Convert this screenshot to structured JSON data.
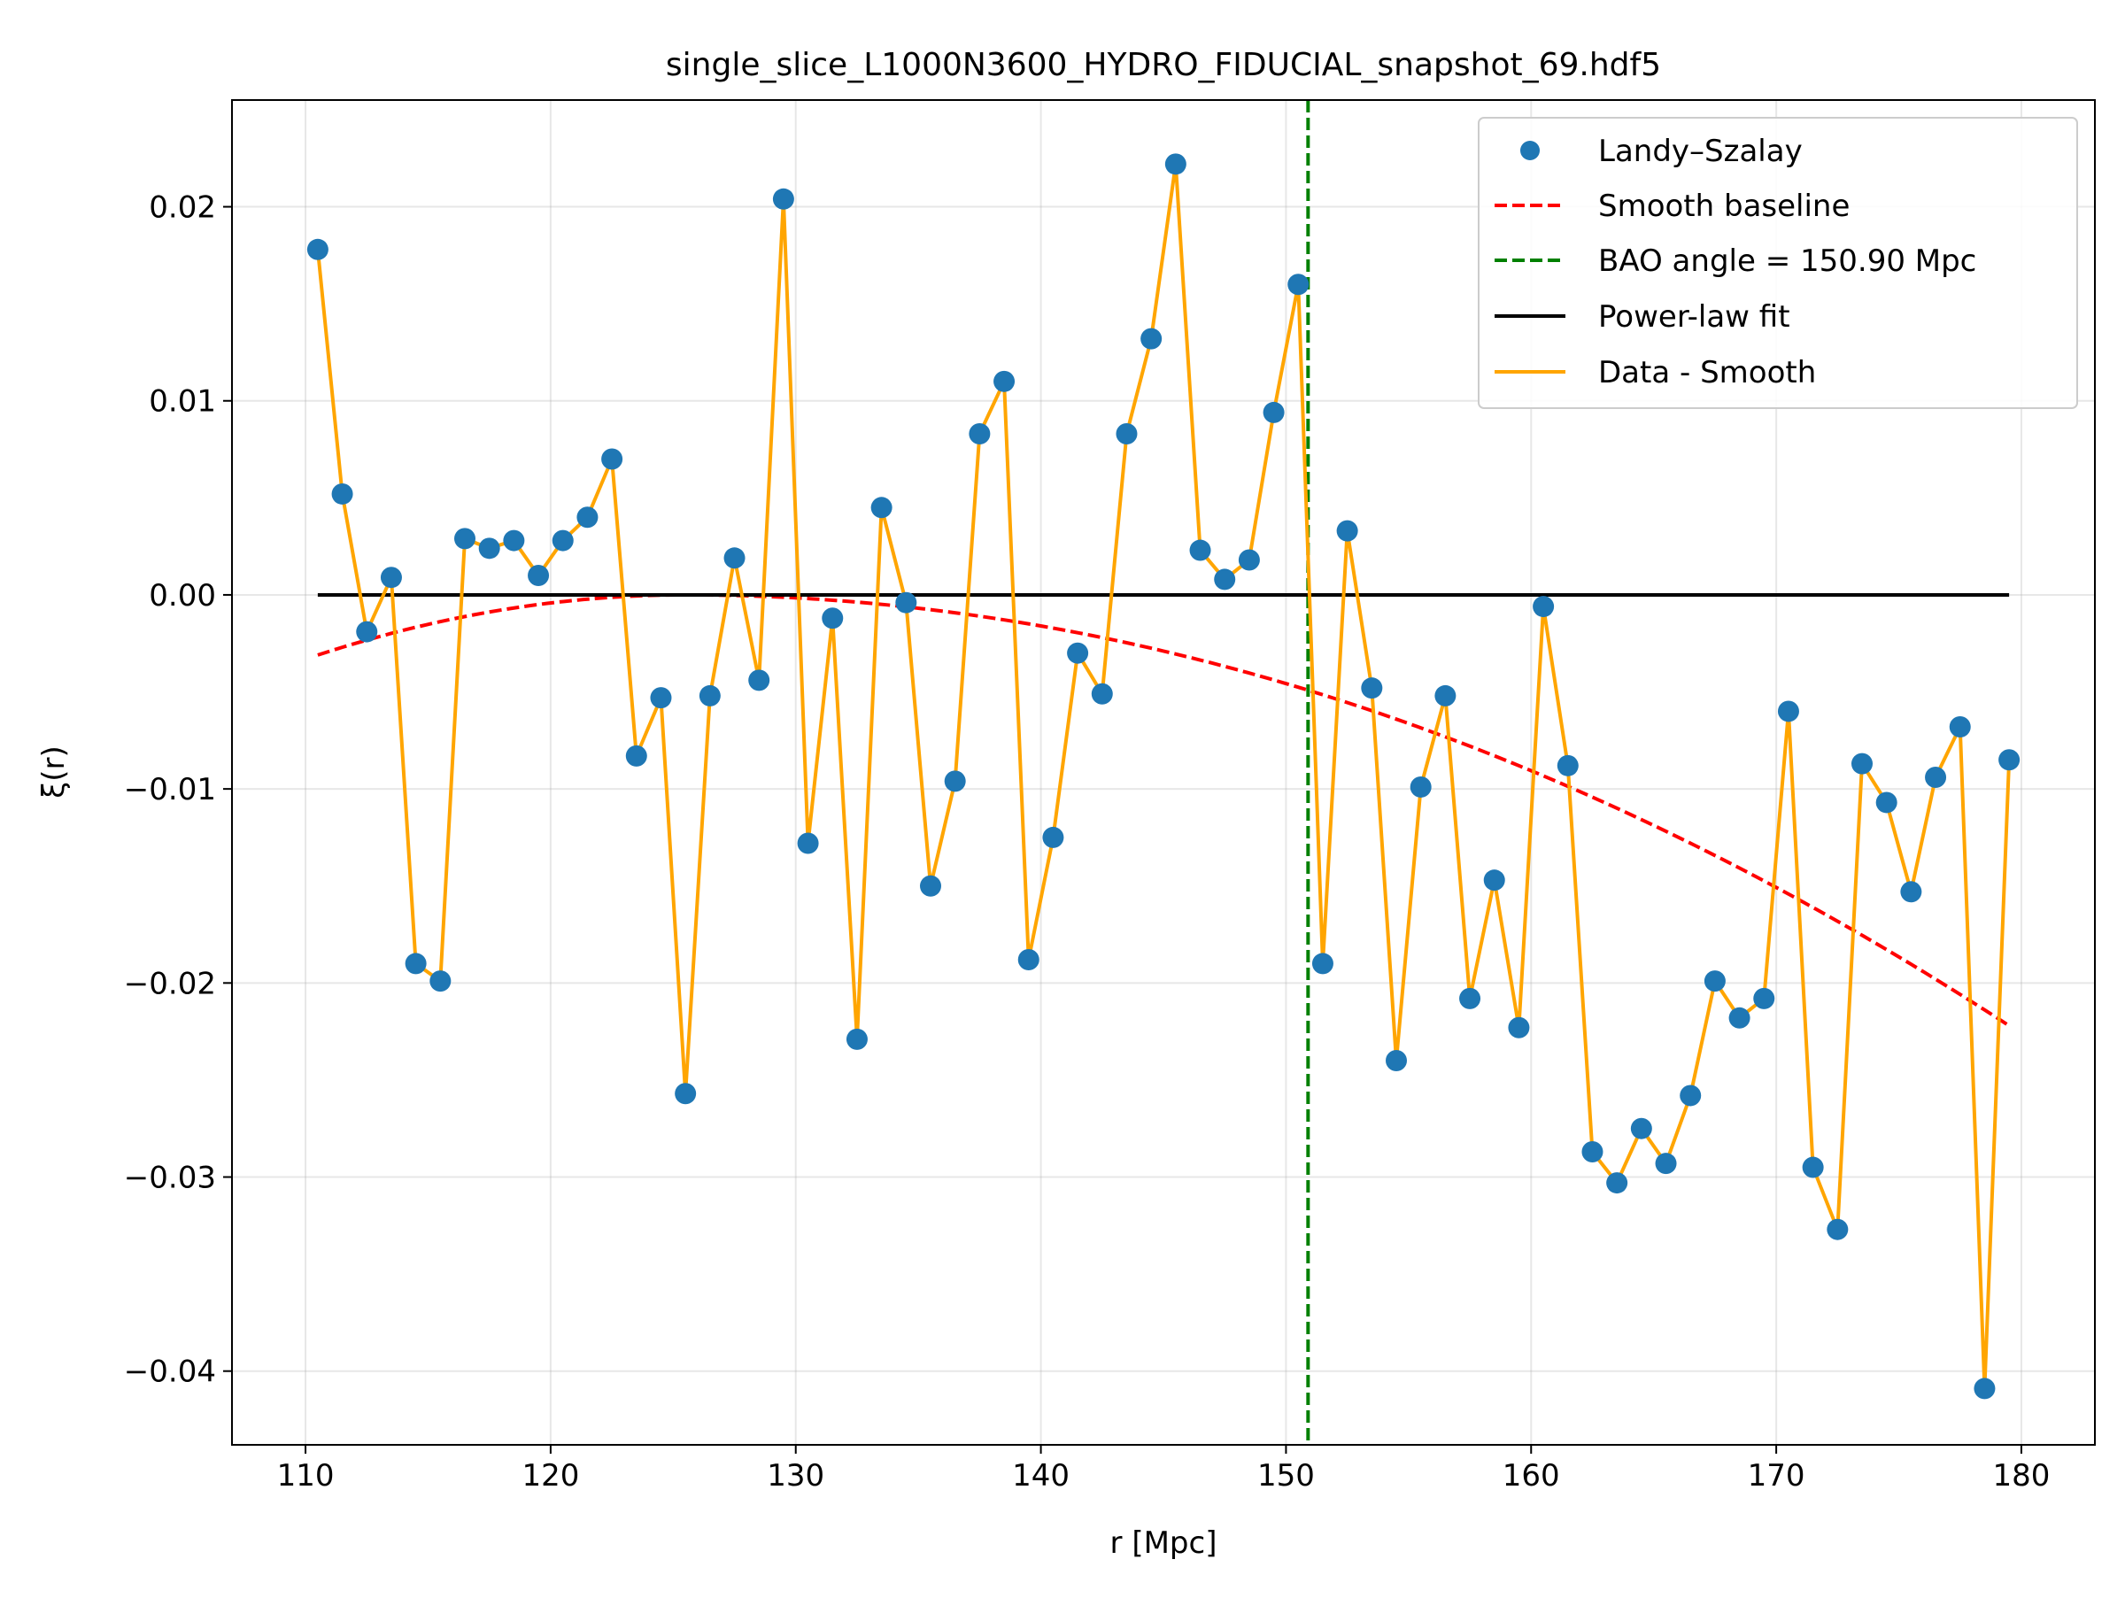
{
  "chart_data": {
    "type": "scatter",
    "title": "single_slice_L1000N3600_HYDRO_FIDUCIAL_snapshot_69.hdf5",
    "xlabel": "r [Mpc]",
    "ylabel": "ξ(r)",
    "xlim": [
      107.0,
      183.0
    ],
    "ylim": [
      -0.0438,
      0.0255
    ],
    "xticks": [
      110,
      120,
      130,
      140,
      150,
      160,
      170,
      180
    ],
    "xtick_labels": [
      "110",
      "120",
      "130",
      "140",
      "150",
      "160",
      "170",
      "180"
    ],
    "yticks": [
      0.02,
      0.01,
      0.0,
      -0.01,
      -0.02,
      -0.03,
      -0.04
    ],
    "ytick_labels": [
      "0.02",
      "0.01",
      "0.00",
      "−0.01",
      "−0.02",
      "−0.03",
      "−0.04"
    ],
    "grid": true,
    "legend_position": "top-right",
    "x": [
      110.5,
      111.5,
      112.5,
      113.5,
      114.5,
      115.5,
      116.5,
      117.5,
      118.5,
      119.5,
      120.5,
      121.5,
      122.5,
      123.5,
      124.5,
      125.5,
      126.5,
      127.5,
      128.5,
      129.5,
      130.5,
      131.5,
      132.5,
      133.5,
      134.5,
      135.5,
      136.5,
      137.5,
      138.5,
      139.5,
      140.5,
      141.5,
      142.5,
      143.5,
      144.5,
      145.5,
      146.5,
      147.5,
      148.5,
      149.5,
      150.5,
      151.5,
      152.5,
      153.5,
      154.5,
      155.5,
      156.5,
      157.5,
      158.5,
      159.5,
      160.5,
      161.5,
      162.5,
      163.5,
      164.5,
      165.5,
      166.5,
      167.5,
      168.5,
      169.5,
      170.5,
      171.5,
      172.5,
      173.5,
      174.5,
      175.5,
      176.5,
      177.5,
      178.5,
      179.5
    ],
    "series": [
      {
        "name": "Landy–Szalay",
        "style": "scatter",
        "color": "#1f77b4",
        "values": [
          0.0178,
          0.0052,
          -0.0019,
          0.0009,
          -0.019,
          -0.0199,
          0.0029,
          0.0024,
          0.0028,
          0.001,
          0.0028,
          0.004,
          0.007,
          -0.0083,
          -0.0053,
          -0.0257,
          -0.0052,
          0.0019,
          -0.0044,
          0.0204,
          -0.0128,
          -0.0012,
          -0.0229,
          0.0045,
          -0.0004,
          -0.015,
          -0.0096,
          0.0083,
          0.011,
          -0.0188,
          -0.0125,
          -0.003,
          -0.0051,
          0.0083,
          0.0132,
          0.0222,
          0.0023,
          0.0008,
          0.0018,
          0.0094,
          0.016,
          -0.019,
          0.0033,
          -0.0048,
          -0.024,
          -0.0099,
          -0.0052,
          -0.0208,
          -0.0147,
          -0.0223,
          -0.0006,
          -0.0088,
          -0.0287,
          -0.0303,
          -0.0275,
          -0.0293,
          -0.0258,
          -0.0199,
          -0.0218,
          -0.0208,
          -0.006,
          -0.0295,
          -0.0327,
          -0.0087,
          -0.0107,
          -0.0153,
          -0.0094,
          -0.0068,
          -0.0409,
          -0.0085
        ]
      },
      {
        "name": "Smooth baseline",
        "style": "dashed",
        "color": "#ff0000",
        "curve": "quadratic",
        "vertex_x": 125.5,
        "vertex_y": 0.0,
        "endpoints": {
          "x": [
            110.5,
            179.5
          ],
          "y": [
            -0.0031,
            -0.0222
          ]
        }
      },
      {
        "name": "BAO angle = 150.90 Mpc",
        "style": "vline",
        "color": "#008000",
        "x": 150.9
      },
      {
        "name": "Power-law fit",
        "style": "line",
        "color": "#000000",
        "x": [
          110.5,
          179.5
        ],
        "values": [
          0.0,
          0.0
        ]
      },
      {
        "name": "Data - Smooth",
        "style": "line",
        "color": "#ffa500",
        "same_as": "Landy–Szalay"
      }
    ]
  }
}
